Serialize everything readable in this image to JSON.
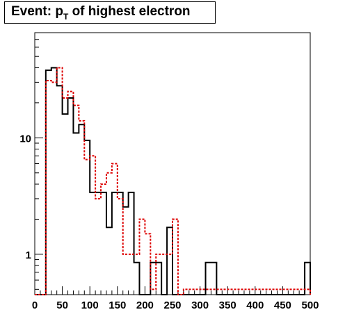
{
  "title": {
    "prefix": "Event: p",
    "subscript": "T",
    "suffix": " of highest electron"
  },
  "chart_data": {
    "type": "histogram",
    "title": "Event: pT of highest electron",
    "xlabel": "",
    "ylabel": "",
    "xlim": [
      0,
      500
    ],
    "ylim": [
      0.45,
      80
    ],
    "log_y": true,
    "grid": false,
    "legend": "none",
    "bin_edges": [
      0,
      10,
      20,
      30,
      40,
      50,
      60,
      70,
      80,
      90,
      100,
      110,
      120,
      130,
      140,
      150,
      160,
      170,
      180,
      190,
      200,
      210,
      220,
      230,
      240,
      250,
      260,
      270,
      280,
      290,
      300,
      310,
      320,
      330,
      340,
      350,
      360,
      370,
      380,
      390,
      400,
      410,
      420,
      430,
      440,
      450,
      460,
      470,
      480,
      490,
      500
    ],
    "x_ticks": [
      0,
      50,
      100,
      150,
      200,
      250,
      300,
      350,
      400,
      450,
      500
    ],
    "x_tick_labels": [
      "0",
      "50",
      "100",
      "150",
      "200",
      "250",
      "300",
      "350",
      "400",
      "450",
      "500"
    ],
    "y_ticks": [
      1,
      10
    ],
    "y_tick_labels": [
      "1",
      "10"
    ],
    "series": [
      {
        "color": "#000000",
        "style": "solid",
        "values": [
          0,
          0,
          38,
          40,
          28,
          16,
          22,
          11,
          13,
          9.5,
          3.4,
          3.4,
          3.4,
          1.7,
          3.4,
          3.4,
          2.55,
          3.4,
          0.85,
          0,
          0,
          0.85,
          0.85,
          0,
          1.7,
          0,
          0,
          0,
          0,
          0,
          0,
          0.85,
          0.85,
          0,
          0,
          0,
          0,
          0,
          0,
          0,
          0,
          0,
          0,
          0,
          0,
          0,
          0,
          0,
          0,
          0.85
        ]
      },
      {
        "color": "#dd0000",
        "style": "dashed",
        "values": [
          0,
          0,
          31,
          30,
          40,
          22,
          25,
          19,
          14,
          6.5,
          7.0,
          3.0,
          4.0,
          5.0,
          6.0,
          3.0,
          1.0,
          1.0,
          1.0,
          2.0,
          1.5,
          0.5,
          1.0,
          1.0,
          1.0,
          2.0,
          0,
          0.5,
          0.5,
          0.5,
          0.5,
          0.5,
          0.5,
          0.5,
          0.5,
          0.5,
          0.5,
          0.5,
          0.5,
          0.5,
          0.5,
          0.5,
          0.5,
          0.5,
          0.5,
          0.5,
          0.5,
          0.5,
          0.5,
          0.5
        ]
      }
    ]
  }
}
